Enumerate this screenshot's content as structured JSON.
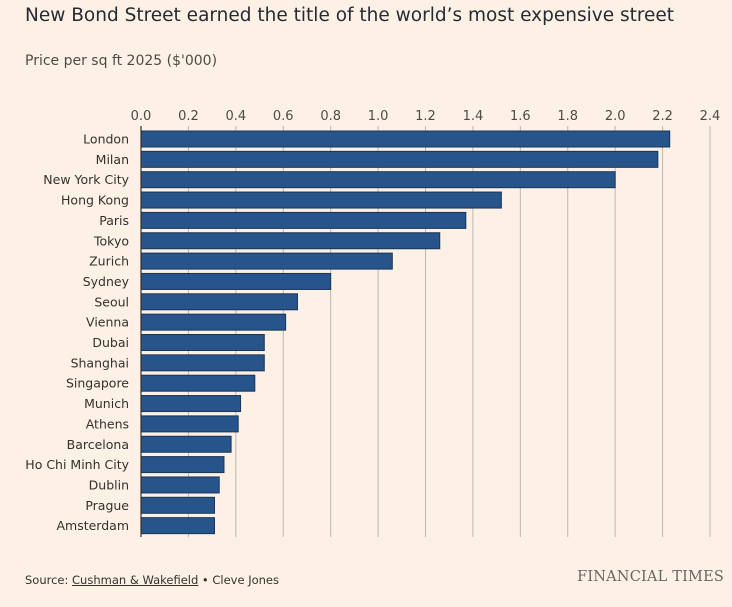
{
  "title": "New Bond Street earned the title of the world’s most expensive street",
  "subtitle": "Price per sq ft 2025 ($'000)",
  "colors": {
    "background": "#fdf1e6",
    "bar": "#27548b",
    "bar_edge": "#173659",
    "grid": "#bfb6ac",
    "axis": "#33302e"
  },
  "chart_data": {
    "type": "bar",
    "orientation": "horizontal",
    "title": "New Bond Street earned the title of the world’s most expensive street",
    "subtitle": "Price per sq ft 2025 ($'000)",
    "xlabel": "",
    "ylabel": "",
    "xlim": [
      0,
      2.4
    ],
    "x_ticks": [
      "0.0",
      "0.2",
      "0.4",
      "0.6",
      "0.8",
      "1.0",
      "1.2",
      "1.4",
      "1.6",
      "1.8",
      "2.0",
      "2.2",
      "2.4"
    ],
    "x_axis_position": "top",
    "grid": true,
    "categories": [
      "London",
      "Milan",
      "New York City",
      "Hong Kong",
      "Paris",
      "Tokyo",
      "Zurich",
      "Sydney",
      "Seoul",
      "Vienna",
      "Dubai",
      "Shanghai",
      "Singapore",
      "Munich",
      "Athens",
      "Barcelona",
      "Ho Chi Minh City",
      "Dublin",
      "Prague",
      "Amsterdam"
    ],
    "values": [
      2.23,
      2.18,
      2.0,
      1.52,
      1.37,
      1.26,
      1.06,
      0.8,
      0.66,
      0.61,
      0.52,
      0.52,
      0.48,
      0.42,
      0.41,
      0.38,
      0.35,
      0.33,
      0.31,
      0.31
    ]
  },
  "footer": {
    "source_prefix": "Source: ",
    "source_link": "Cushman & Wakefield",
    "source_suffix": " • Cleve Jones",
    "brand": "FINANCIAL TIMES"
  }
}
